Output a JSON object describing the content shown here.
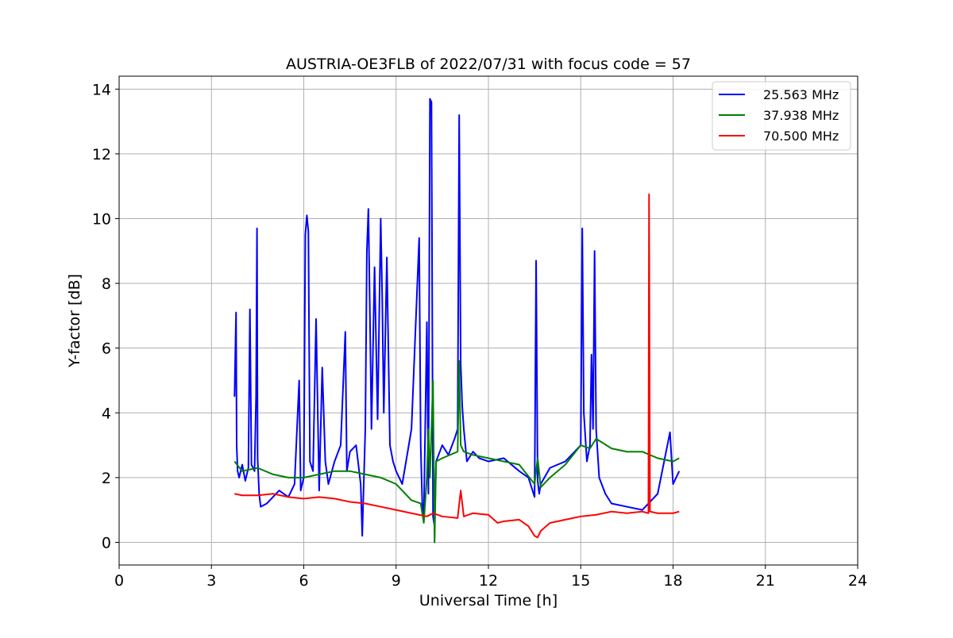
{
  "chart_data": {
    "type": "line",
    "title": "AUSTRIA-OE3FLB of 2022/07/31 with focus code = 57",
    "xlabel": "Universal Time [h]",
    "ylabel": "Y-factor [dB]",
    "xlim": [
      0,
      24
    ],
    "ylim": [
      -0.7,
      14.4
    ],
    "xticks": [
      0,
      3,
      6,
      9,
      12,
      15,
      18,
      21,
      24
    ],
    "yticks": [
      0,
      2,
      4,
      6,
      8,
      10,
      12,
      14
    ],
    "xtick_labels": [
      "0",
      "3",
      "6",
      "9",
      "12",
      "15",
      "18",
      "21",
      "24"
    ],
    "ytick_labels": [
      "0",
      "2",
      "4",
      "6",
      "8",
      "10",
      "12",
      "14"
    ],
    "grid": true,
    "legend_position": "top-right",
    "series": [
      {
        "name": "25.563 MHz",
        "color": "#0000ff",
        "x": [
          3.75,
          3.8,
          3.82,
          3.85,
          3.9,
          4.0,
          4.1,
          4.2,
          4.25,
          4.3,
          4.4,
          4.45,
          4.48,
          4.5,
          4.55,
          4.6,
          4.8,
          5.0,
          5.2,
          5.5,
          5.7,
          5.85,
          5.9,
          6.0,
          6.05,
          6.1,
          6.15,
          6.2,
          6.3,
          6.4,
          6.5,
          6.6,
          6.7,
          6.8,
          7.0,
          7.2,
          7.35,
          7.4,
          7.5,
          7.7,
          7.85,
          7.9,
          8.0,
          8.05,
          8.1,
          8.15,
          8.2,
          8.3,
          8.4,
          8.5,
          8.55,
          8.6,
          8.7,
          8.8,
          8.9,
          9.0,
          9.2,
          9.5,
          9.75,
          9.8,
          9.85,
          9.9,
          10.0,
          10.05,
          10.1,
          10.15,
          10.2,
          10.25,
          10.3,
          10.5,
          10.7,
          10.9,
          11.0,
          11.05,
          11.1,
          11.15,
          11.2,
          11.3,
          11.5,
          11.7,
          12.0,
          12.5,
          13.0,
          13.3,
          13.5,
          13.55,
          13.6,
          13.65,
          13.7,
          14.0,
          14.5,
          14.9,
          15.0,
          15.05,
          15.1,
          15.2,
          15.3,
          15.35,
          15.4,
          15.45,
          15.5,
          15.6,
          15.8,
          16.0,
          16.5,
          17.0,
          17.5,
          17.9,
          18.0,
          18.1,
          18.2
        ],
        "values": [
          4.5,
          7.1,
          3.0,
          2.2,
          2.0,
          2.4,
          1.9,
          2.3,
          7.2,
          2.4,
          2.2,
          4.5,
          9.7,
          2.6,
          1.5,
          1.1,
          1.2,
          1.4,
          1.6,
          1.4,
          1.8,
          5.0,
          1.6,
          2.0,
          9.5,
          10.1,
          9.6,
          2.5,
          2.2,
          6.9,
          1.6,
          5.4,
          2.5,
          1.8,
          2.5,
          3.0,
          6.5,
          2.2,
          2.8,
          3.0,
          1.8,
          0.2,
          3.5,
          9.0,
          10.3,
          7.0,
          3.5,
          8.5,
          3.8,
          10.0,
          7.5,
          4.0,
          8.8,
          3.0,
          2.5,
          2.2,
          1.8,
          3.5,
          9.4,
          3.0,
          1.2,
          0.8,
          6.8,
          1.5,
          13.7,
          13.6,
          0.8,
          0.5,
          2.5,
          3.0,
          2.7,
          3.2,
          3.5,
          13.2,
          5.5,
          4.2,
          3.5,
          2.5,
          2.8,
          2.6,
          2.5,
          2.6,
          2.2,
          2.0,
          1.4,
          8.7,
          1.9,
          1.5,
          1.8,
          2.3,
          2.5,
          2.9,
          3.0,
          9.7,
          4.0,
          2.5,
          3.0,
          5.8,
          3.5,
          9.0,
          3.5,
          2.0,
          1.5,
          1.2,
          1.1,
          1.0,
          1.5,
          3.4,
          1.8,
          2.0,
          2.2
        ]
      },
      {
        "name": "37.938 MHz",
        "color": "#008000",
        "x": [
          3.75,
          4.0,
          4.5,
          5.0,
          5.5,
          6.0,
          6.5,
          7.0,
          7.5,
          8.0,
          8.5,
          9.0,
          9.5,
          9.8,
          9.9,
          10.0,
          10.05,
          10.1,
          10.2,
          10.25,
          10.3,
          10.5,
          11.0,
          11.05,
          11.1,
          11.2,
          11.5,
          12.0,
          12.5,
          13.0,
          13.5,
          13.6,
          13.7,
          14.0,
          14.5,
          15.0,
          15.3,
          15.5,
          16.0,
          16.5,
          17.0,
          17.5,
          18.0,
          18.2
        ],
        "values": [
          2.5,
          2.2,
          2.3,
          2.1,
          2.0,
          2.0,
          2.1,
          2.2,
          2.2,
          2.1,
          2.0,
          1.8,
          1.3,
          1.2,
          0.6,
          2.0,
          3.5,
          2.0,
          5.0,
          0.0,
          2.5,
          2.6,
          2.8,
          5.6,
          3.0,
          2.8,
          2.7,
          2.6,
          2.5,
          2.4,
          1.8,
          2.6,
          1.7,
          2.0,
          2.4,
          3.0,
          2.9,
          3.2,
          2.9,
          2.8,
          2.8,
          2.6,
          2.5,
          2.6
        ]
      },
      {
        "name": "70.500 MHz",
        "color": "#ff0000",
        "x": [
          3.75,
          4.0,
          4.5,
          5.0,
          5.5,
          6.0,
          6.5,
          7.0,
          7.5,
          8.0,
          8.5,
          9.0,
          9.5,
          10.0,
          10.2,
          10.5,
          11.0,
          11.1,
          11.2,
          11.5,
          12.0,
          12.3,
          12.5,
          13.0,
          13.3,
          13.5,
          13.6,
          13.7,
          14.0,
          14.5,
          15.0,
          15.5,
          16.0,
          16.5,
          17.0,
          17.2,
          17.22,
          17.25,
          17.5,
          18.0,
          18.2
        ],
        "values": [
          1.5,
          1.45,
          1.45,
          1.5,
          1.4,
          1.35,
          1.4,
          1.35,
          1.25,
          1.2,
          1.1,
          1.0,
          0.9,
          0.8,
          0.9,
          0.8,
          0.75,
          1.6,
          0.8,
          0.9,
          0.85,
          0.6,
          0.65,
          0.7,
          0.5,
          0.2,
          0.15,
          0.35,
          0.6,
          0.7,
          0.8,
          0.85,
          0.95,
          0.9,
          0.95,
          0.9,
          10.75,
          0.95,
          0.9,
          0.9,
          0.95
        ]
      }
    ]
  }
}
